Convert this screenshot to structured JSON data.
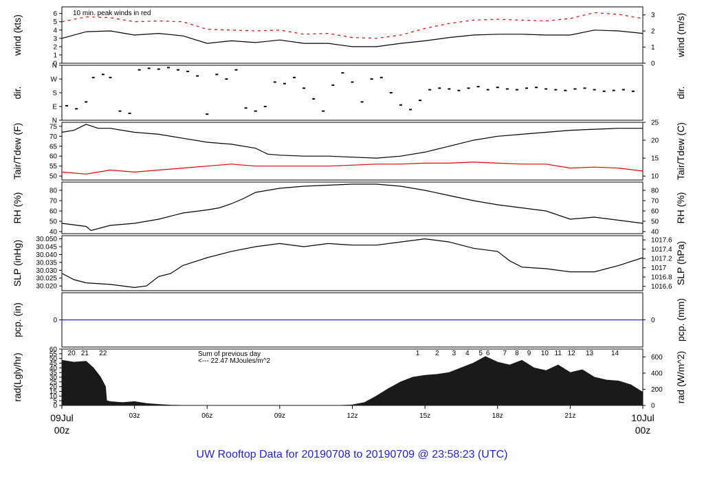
{
  "footer_title": "UW Rooftop Data for 20190708  to  20190709 @ 23:58:23  (UTC)",
  "x_axis": {
    "start_label": [
      "09Jul",
      "00z"
    ],
    "end_label": [
      "10Jul",
      "00z"
    ],
    "ticks": [
      {
        "hour": 3,
        "label": "03z"
      },
      {
        "hour": 6,
        "label": "06z"
      },
      {
        "hour": 9,
        "label": "09z"
      },
      {
        "hour": 12,
        "label": "12z"
      },
      {
        "hour": 15,
        "label": "15z"
      },
      {
        "hour": 18,
        "label": "18z"
      },
      {
        "hour": 21,
        "label": "21z"
      }
    ],
    "range_hours": [
      0,
      24
    ],
    "date_color": "#e00000"
  },
  "chart_data": [
    {
      "type": "line",
      "id": "wind",
      "ylabel_left": "wind (kts)",
      "ylabel_right": "wind (m/s)",
      "annotation": "10 min. peak winds in red",
      "annotation_color": "#e00000",
      "ylim": [
        0,
        6.8
      ],
      "yticks_left": [
        0,
        1,
        2,
        3,
        4,
        5,
        6
      ],
      "yticks_right": [
        {
          "label": "0",
          "kts": 0
        },
        {
          "label": "1",
          "kts": 1.944
        },
        {
          "label": "2",
          "kts": 3.888
        },
        {
          "label": "3",
          "kts": 5.832
        }
      ],
      "series": [
        {
          "color": "#000000",
          "x": [
            0,
            1,
            2,
            3,
            4,
            5,
            6,
            7,
            8,
            9,
            10,
            11,
            12,
            13,
            14,
            15,
            16,
            17,
            18,
            19,
            20,
            21,
            22,
            23,
            24
          ],
          "y": [
            3.0,
            3.8,
            3.9,
            3.4,
            3.6,
            3.3,
            2.4,
            2.7,
            2.5,
            2.8,
            2.4,
            2.4,
            2.0,
            2.0,
            2.4,
            2.7,
            3.1,
            3.4,
            3.5,
            3.5,
            3.4,
            3.4,
            4.0,
            3.9,
            3.6
          ]
        },
        {
          "color": "#e00000",
          "style": "dash",
          "x": [
            0,
            1,
            2,
            3,
            4,
            5,
            6,
            7,
            8,
            9,
            10,
            11,
            12,
            13,
            14,
            15,
            16,
            17,
            18,
            19,
            20,
            21,
            22,
            23,
            24
          ],
          "y": [
            5.0,
            5.6,
            5.5,
            5.0,
            5.1,
            5.0,
            4.1,
            4.0,
            3.9,
            4.0,
            3.5,
            3.6,
            3.1,
            3.0,
            3.4,
            4.2,
            4.8,
            5.2,
            5.3,
            5.2,
            5.1,
            5.4,
            6.1,
            5.9,
            5.4
          ]
        }
      ]
    },
    {
      "type": "scatter",
      "id": "direction",
      "ylabel_left": "dir.",
      "ylabel_right": "dir.",
      "ylim": [
        0,
        360
      ],
      "yticks_left": [
        {
          "value": 0,
          "label": "N"
        },
        {
          "value": 90,
          "label": "E"
        },
        {
          "value": 180,
          "label": "S"
        },
        {
          "value": 270,
          "label": "W"
        },
        {
          "value": 360,
          "label": "N"
        }
      ],
      "series": [
        {
          "color": "#000000",
          "x": [
            0.2,
            0.6,
            1.0,
            1.3,
            1.7,
            2.0,
            2.4,
            2.8,
            3.2,
            3.6,
            4.0,
            4.4,
            4.8,
            5.2,
            5.6,
            6.0,
            6.4,
            6.8,
            7.2,
            7.6,
            8.0,
            8.4,
            8.8,
            9.2,
            9.6,
            10.0,
            10.4,
            10.8,
            11.2,
            11.6,
            12.0,
            12.4,
            12.8,
            13.2,
            13.6,
            14.0,
            14.4,
            14.8,
            15.2,
            15.6,
            16.0,
            16.4,
            16.8,
            17.2,
            17.6,
            18.0,
            18.4,
            18.8,
            19.2,
            19.6,
            20.0,
            20.4,
            20.8,
            21.2,
            21.6,
            22.0,
            22.4,
            22.8,
            23.2,
            23.6
          ],
          "y": [
            95,
            75,
            120,
            280,
            300,
            280,
            60,
            45,
            330,
            340,
            335,
            345,
            330,
            320,
            290,
            40,
            300,
            270,
            330,
            80,
            60,
            90,
            250,
            240,
            280,
            210,
            140,
            60,
            230,
            310,
            250,
            120,
            270,
            280,
            180,
            100,
            70,
            130,
            200,
            210,
            205,
            195,
            210,
            220,
            200,
            215,
            205,
            200,
            210,
            215,
            205,
            200,
            195,
            205,
            210,
            200,
            190,
            195,
            200,
            190
          ]
        }
      ]
    },
    {
      "type": "line",
      "id": "temperature",
      "ylabel_left": "Tair/Tdew (F)",
      "ylabel_right": "Tair/Tdew (C)",
      "ylim": [
        48,
        77
      ],
      "yticks_left": [
        50,
        55,
        60,
        65,
        70,
        75
      ],
      "yticks_right": [
        {
          "label": "10",
          "f": 50
        },
        {
          "label": "15",
          "f": 59
        },
        {
          "label": "20",
          "f": 68
        },
        {
          "label": "25",
          "f": 77
        }
      ],
      "series": [
        {
          "name": "Tair",
          "color": "#000000",
          "x": [
            0,
            0.5,
            1.0,
            1.5,
            2,
            2.5,
            3,
            4,
            5,
            6,
            7,
            8,
            8.5,
            9,
            10,
            11,
            12,
            13,
            14,
            15,
            16,
            17,
            18,
            19,
            20,
            21,
            22,
            23,
            24
          ],
          "y": [
            72,
            73,
            76,
            74,
            74,
            73,
            72,
            71,
            69,
            67,
            66,
            64,
            61,
            60.5,
            60,
            60,
            59.5,
            59,
            60,
            62,
            65,
            68,
            70,
            71,
            72,
            73,
            73.5,
            74,
            74
          ]
        },
        {
          "name": "Tdew",
          "color": "#e00000",
          "x": [
            0,
            1,
            2,
            3,
            4,
            5,
            6,
            7,
            8,
            9,
            10,
            11,
            12,
            13,
            14,
            15,
            16,
            17,
            18,
            19,
            20,
            21,
            22,
            23,
            24
          ],
          "y": [
            52,
            51,
            53,
            52,
            53,
            54,
            55,
            56,
            55,
            55,
            55,
            55,
            55.5,
            56,
            56,
            56.5,
            56.5,
            57,
            56.5,
            56,
            56,
            54,
            54.5,
            54,
            52.5
          ]
        }
      ]
    },
    {
      "type": "line",
      "id": "relative-humidity",
      "ylabel_left": "RH (%)",
      "ylabel_right": "RH (%)",
      "ylim": [
        38,
        88
      ],
      "yticks_left": [
        40,
        50,
        60,
        70,
        80
      ],
      "yticks_right": [
        {
          "label": "40",
          "v": 40
        },
        {
          "label": "50",
          "v": 50
        },
        {
          "label": "60",
          "v": 60
        },
        {
          "label": "70",
          "v": 70
        },
        {
          "label": "80",
          "v": 80
        }
      ],
      "series": [
        {
          "color": "#000000",
          "x": [
            0,
            1,
            1.2,
            2,
            3,
            4,
            5,
            6,
            6.5,
            7,
            7.5,
            8,
            9,
            10,
            11,
            12,
            13,
            14,
            15,
            16,
            17,
            18,
            19,
            20,
            21,
            22,
            23,
            24
          ],
          "y": [
            48,
            45,
            41,
            46,
            48,
            52,
            58,
            61,
            63,
            67,
            72,
            78,
            82,
            84,
            85,
            86,
            86,
            84,
            80,
            75,
            70,
            66,
            63,
            60,
            52,
            54,
            51,
            48
          ]
        }
      ]
    },
    {
      "type": "line",
      "id": "sea-level-pressure",
      "ylabel_left": "SLP (inHg)",
      "ylabel_right": "SLP (hPa)",
      "ylim": [
        30.017,
        30.052
      ],
      "yticks_left": [
        {
          "label": "30.020",
          "v": 30.02
        },
        {
          "label": "30.025",
          "v": 30.025
        },
        {
          "label": "30.030",
          "v": 30.03
        },
        {
          "label": "30.035",
          "v": 30.035
        },
        {
          "label": "30.040",
          "v": 30.04
        },
        {
          "label": "30.045",
          "v": 30.045
        },
        {
          "label": "30.050",
          "v": 30.05
        }
      ],
      "yticks_right": [
        {
          "label": "1016.6",
          "v": 30.0198
        },
        {
          "label": "1016.8",
          "v": 30.0257
        },
        {
          "label": "1017",
          "v": 30.0316
        },
        {
          "label": "1017.2",
          "v": 30.0375
        },
        {
          "label": "1017.4",
          "v": 30.0434
        },
        {
          "label": "1017.6",
          "v": 30.0493
        }
      ],
      "series": [
        {
          "color": "#000000",
          "x": [
            0,
            0.5,
            1,
            2,
            2.5,
            3,
            3.5,
            4,
            4.5,
            5,
            6,
            7,
            8,
            9,
            10,
            11,
            12,
            13,
            14,
            15,
            16,
            17,
            18,
            18.5,
            19,
            20,
            21,
            22,
            23,
            24
          ],
          "y": [
            30.028,
            30.024,
            30.022,
            30.021,
            30.02,
            30.019,
            30.02,
            30.026,
            30.028,
            30.033,
            30.038,
            30.042,
            30.045,
            30.047,
            30.045,
            30.047,
            30.046,
            30.046,
            30.048,
            30.05,
            30.048,
            30.044,
            30.042,
            30.036,
            30.032,
            30.031,
            30.029,
            30.029,
            30.033,
            30.038
          ]
        }
      ]
    },
    {
      "type": "line",
      "id": "precipitation",
      "ylabel_left": "pcp. (in)",
      "ylabel_right": "pcp. (mm)",
      "ylim": [
        -1,
        1
      ],
      "yticks_left": [
        0
      ],
      "yticks_right": [
        {
          "label": "0",
          "v": 0
        }
      ],
      "series": [
        {
          "color": "#1f1fd6",
          "x": [
            0,
            24
          ],
          "y": [
            0,
            0
          ]
        }
      ]
    },
    {
      "type": "area",
      "id": "solar-radiation",
      "ylabel_left": "rad(Lgly/hr)",
      "ylabel_right": "rad (W/m^2)",
      "ylim": [
        0,
        60
      ],
      "yticks_left": [
        0,
        5,
        10,
        15,
        20,
        25,
        30,
        35,
        40,
        45,
        50,
        55,
        60
      ],
      "yticks_right": [
        {
          "label": "0",
          "v": 0
        },
        {
          "label": "200",
          "v": 17.2
        },
        {
          "label": "400",
          "v": 34.4
        },
        {
          "label": "600",
          "v": 51.6
        }
      ],
      "annotation": [
        "Sum of previous day",
        "<--- 22.47 MJoules/m^2"
      ],
      "annotation_color": "#8a2be2",
      "hour_markers": [
        {
          "hour": 0.4,
          "label": "20"
        },
        {
          "hour": 0.95,
          "label": "21"
        },
        {
          "hour": 1.7,
          "label": "22"
        },
        {
          "hour": 14.7,
          "label": "1"
        },
        {
          "hour": 15.5,
          "label": "2"
        },
        {
          "hour": 16.2,
          "label": "3"
        },
        {
          "hour": 16.75,
          "label": "4"
        },
        {
          "hour": 17.3,
          "label": "5"
        },
        {
          "hour": 17.6,
          "label": "6"
        },
        {
          "hour": 18.3,
          "label": "7"
        },
        {
          "hour": 18.8,
          "label": "8"
        },
        {
          "hour": 19.3,
          "label": "9"
        },
        {
          "hour": 19.95,
          "label": "10"
        },
        {
          "hour": 20.5,
          "label": "11"
        },
        {
          "hour": 21.05,
          "label": "12"
        },
        {
          "hour": 21.8,
          "label": "13"
        },
        {
          "hour": 22.85,
          "label": "14"
        }
      ],
      "series": [
        {
          "color": "#1a1a1a",
          "x": [
            0,
            0.5,
            1.0,
            1.3,
            1.6,
            1.8,
            1.85,
            2,
            2.5,
            3,
            3.5,
            4,
            4.5,
            5,
            5.5,
            11.5,
            12,
            12.5,
            13,
            13.5,
            14,
            14.5,
            15,
            15.5,
            16,
            16.5,
            17,
            17.5,
            18,
            18.5,
            19,
            19.5,
            20,
            20.5,
            21,
            21.5,
            22,
            22.5,
            23,
            23.5,
            24
          ],
          "y": [
            48,
            46,
            47,
            40,
            30,
            20,
            5,
            4,
            3,
            4,
            2,
            1,
            0.3,
            0,
            0,
            0,
            0.5,
            3,
            10,
            18,
            25,
            30,
            32,
            33,
            35,
            40,
            45,
            52,
            46,
            43,
            48,
            40,
            37,
            43,
            35,
            38,
            30,
            27,
            26,
            22,
            14
          ]
        }
      ]
    }
  ]
}
